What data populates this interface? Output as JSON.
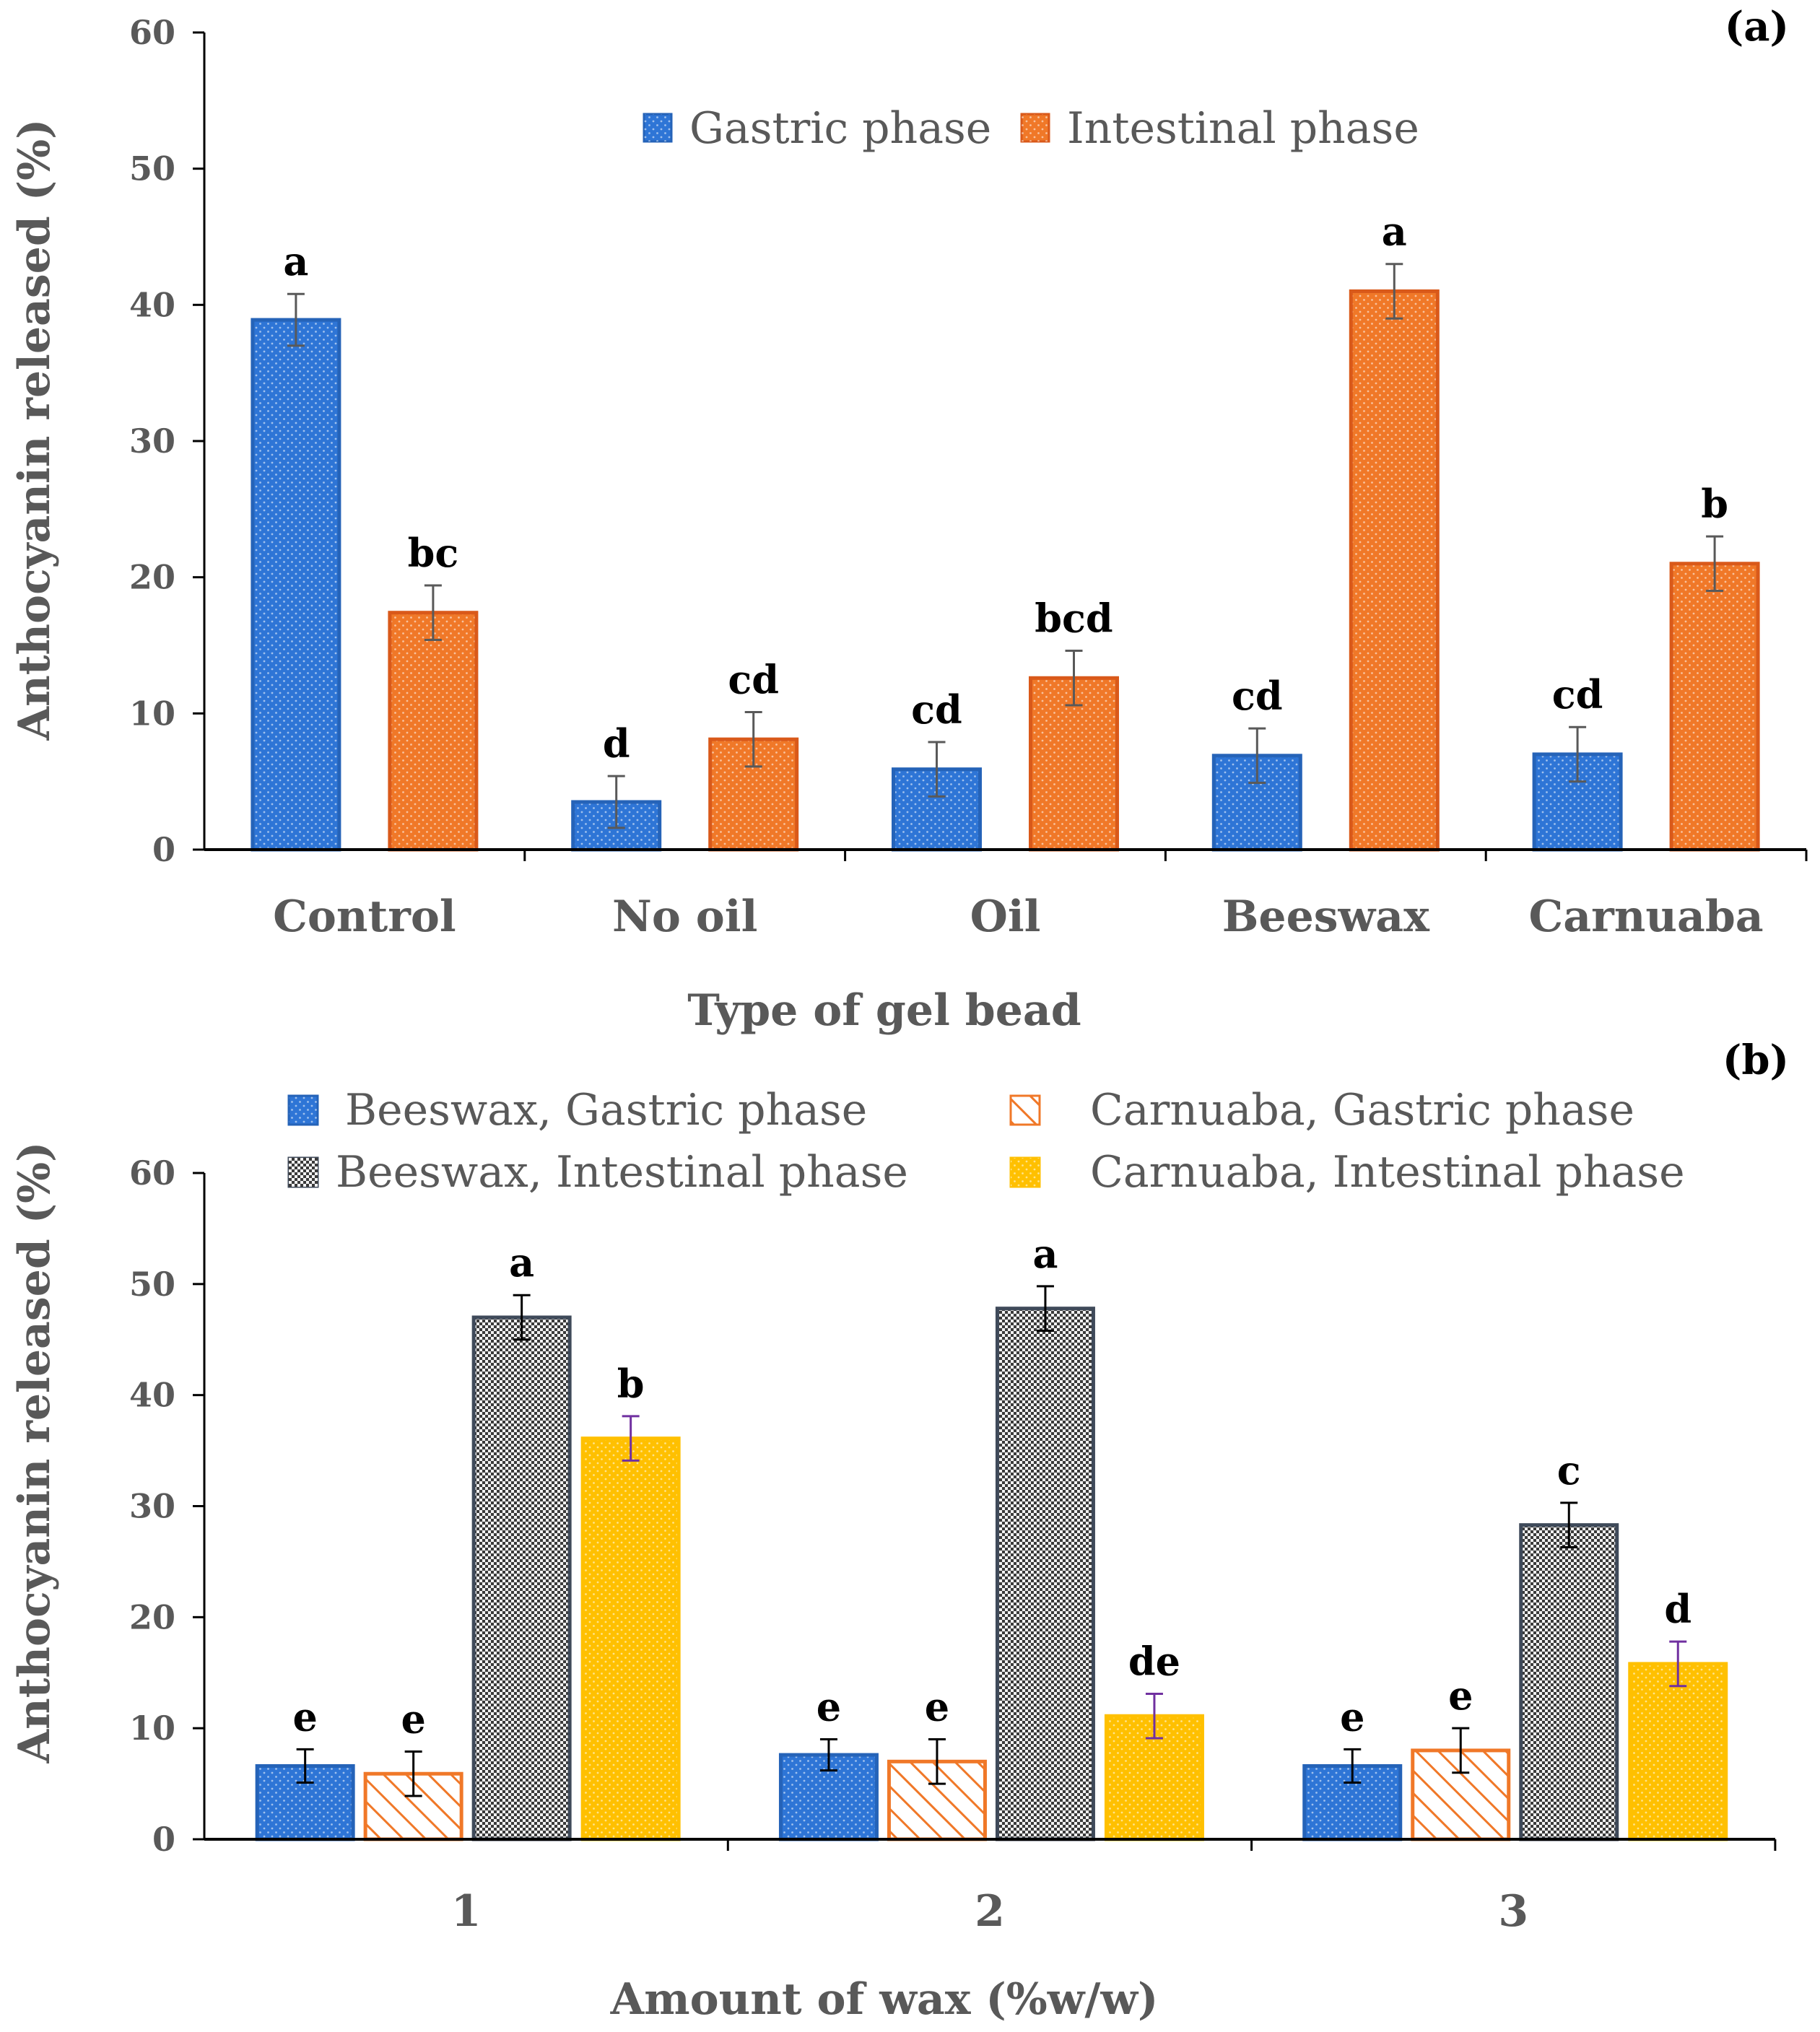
{
  "chart_data": [
    {
      "panel_label": "(a)",
      "type": "bar",
      "xlabel": "Type of gel bead",
      "ylabel": "Anthocyanin released (%)",
      "ylim": [
        0,
        60
      ],
      "yticks": [
        "0",
        "10",
        "20",
        "30",
        "40",
        "50",
        "60"
      ],
      "categories": [
        "Control",
        "No oil",
        "Oil",
        "Beeswax",
        "Carnuaba"
      ],
      "legend_position": "top-center",
      "series": [
        {
          "name": "Gastric phase",
          "fill": "#2E75D6",
          "stroke": "#2563B8",
          "pattern": "dots",
          "values": [
            38.9,
            3.5,
            5.9,
            6.9,
            7.0
          ],
          "errors": [
            1.9,
            1.9,
            2.0,
            2.0,
            2.0
          ],
          "letters": [
            "a",
            "d",
            "cd",
            "cd",
            "cd"
          ]
        },
        {
          "name": "Intestinal phase",
          "fill": "#F07828",
          "stroke": "#D9591A",
          "pattern": "dots",
          "values": [
            17.4,
            8.1,
            12.6,
            41.0,
            21.0
          ],
          "errors": [
            2.0,
            2.0,
            2.0,
            2.0,
            2.0
          ],
          "letters": [
            "bc",
            "cd",
            "bcd",
            "a",
            "b"
          ]
        }
      ]
    },
    {
      "panel_label": "(b)",
      "type": "bar",
      "xlabel": "Amount of wax (%w/w)",
      "ylabel": "Anthocyanin released (%)",
      "ylim": [
        0,
        60
      ],
      "yticks": [
        "0",
        "10",
        "20",
        "30",
        "40",
        "50",
        "60"
      ],
      "categories": [
        "1",
        "2",
        "3"
      ],
      "legend_position": "top",
      "series": [
        {
          "name": "Beeswax, Gastric phase",
          "fill": "#2E75D6",
          "stroke": "#2563B8",
          "pattern": "dots",
          "values": [
            6.6,
            7.6,
            6.6
          ],
          "errors": [
            1.5,
            1.4,
            1.5
          ],
          "letters": [
            "e",
            "e",
            "e"
          ]
        },
        {
          "name": "Carnuaba, Gastric phase",
          "fill": "#FFFFFF",
          "stroke": "#F07828",
          "pattern": "hatch",
          "values": [
            5.9,
            7.0,
            8.0
          ],
          "errors": [
            2.0,
            2.0,
            2.0
          ],
          "letters": [
            "e",
            "e",
            "e"
          ]
        },
        {
          "name": "Beeswax, Intestinal phase",
          "fill": "#9A9A9A",
          "stroke": "#3F4A5A",
          "pattern": "checker",
          "values": [
            47.0,
            47.8,
            28.3
          ],
          "errors": [
            2.0,
            2.0,
            2.0
          ],
          "letters": [
            "a",
            "a",
            "c"
          ]
        },
        {
          "name": "Carnuaba, Intestinal phase",
          "fill": "#FFC000",
          "stroke": "#FFC000",
          "pattern": "dots",
          "values": [
            36.1,
            11.1,
            15.8
          ],
          "errors": [
            2.0,
            2.0,
            2.0
          ],
          "letters": [
            "b",
            "de",
            "d"
          ]
        }
      ]
    }
  ]
}
